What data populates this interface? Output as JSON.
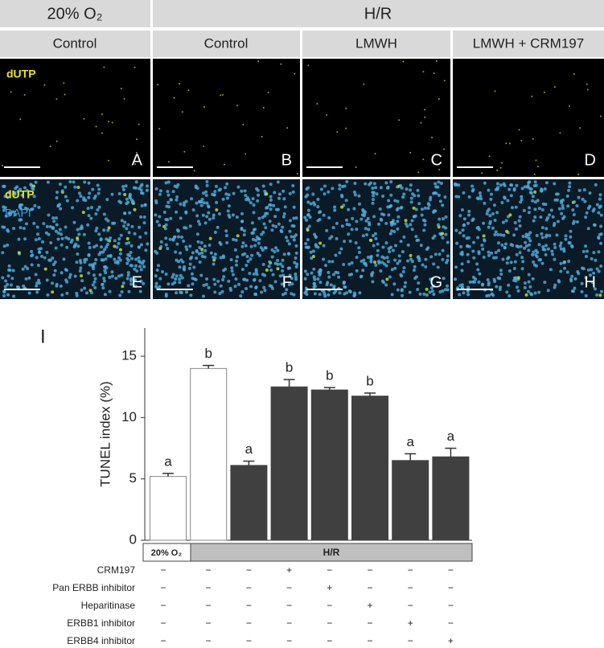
{
  "header": {
    "groups": [
      "20% O₂",
      "H/R"
    ],
    "columns": [
      "Control",
      "Control",
      "LMWH",
      "LMWH + CRM197"
    ]
  },
  "panels": {
    "row1_label": "dUTP",
    "row2_labels": [
      "dUTP",
      "DAPI"
    ],
    "letters": [
      "A",
      "B",
      "C",
      "D",
      "E",
      "F",
      "G",
      "H"
    ]
  },
  "chart_data": {
    "type": "bar",
    "panel_label": "I",
    "y_label": "TUNEL index (%)",
    "values": [
      5.2,
      14.0,
      6.1,
      12.5,
      12.25,
      11.75,
      6.5,
      6.8
    ],
    "errors": [
      0.25,
      0.25,
      0.35,
      0.6,
      0.2,
      0.25,
      0.55,
      0.7
    ],
    "colors": [
      "#ffffff",
      "#ffffff",
      "#404040",
      "#404040",
      "#404040",
      "#404040",
      "#404040",
      "#404040"
    ],
    "annotations": [
      "a",
      "b",
      "a",
      "b",
      "b",
      "b",
      "a",
      "a"
    ],
    "ylim": [
      0,
      17.3
    ],
    "yticks": [
      0,
      5,
      10,
      15
    ],
    "groups": [
      "20% O₂",
      "H/R"
    ],
    "conditions": [
      {
        "name": "CRM197",
        "signs": [
          "−",
          "−",
          "−",
          "+",
          "−",
          "−",
          "−",
          "−"
        ]
      },
      {
        "name": "Pan ERBB inhibitor",
        "signs": [
          "−",
          "−",
          "−",
          "−",
          "+",
          "−",
          "−",
          "−"
        ]
      },
      {
        "name": "Heparitinase",
        "signs": [
          "−",
          "−",
          "−",
          "−",
          "−",
          "+",
          "−",
          "−"
        ]
      },
      {
        "name": "ERBB1 inhibitor",
        "signs": [
          "−",
          "−",
          "−",
          "−",
          "−",
          "−",
          "+",
          "−"
        ]
      },
      {
        "name": "ERBB4 inhibitor",
        "signs": [
          "−",
          "−",
          "−",
          "−",
          "−",
          "−",
          "−",
          "+"
        ]
      }
    ]
  }
}
